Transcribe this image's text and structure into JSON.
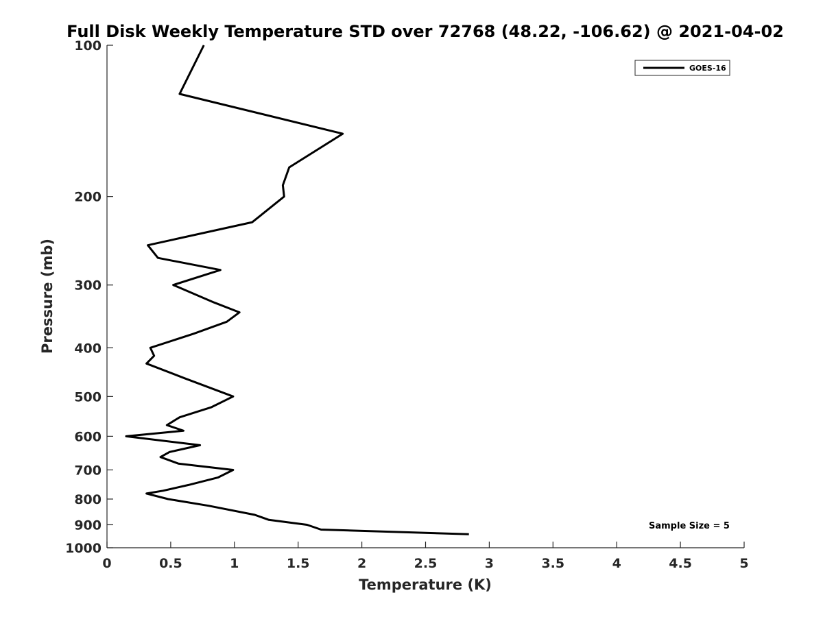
{
  "chart_data": {
    "type": "line",
    "title": "Full Disk Weekly Temperature STD over 72768 (48.22, -106.62) @ 2021-04-02",
    "xlabel": "Temperature (K)",
    "ylabel": "Pressure (mb)",
    "xlim": [
      0,
      5
    ],
    "ylim": [
      100,
      1000
    ],
    "y_scale": "log",
    "y_reversed": true,
    "grid": false,
    "x_ticks": [
      "0",
      "0.5",
      "1",
      "1.5",
      "2",
      "2.5",
      "3",
      "3.5",
      "4",
      "4.5",
      "5"
    ],
    "y_ticks": [
      "100",
      "200",
      "300",
      "400",
      "500",
      "600",
      "700",
      "800",
      "900",
      "1000"
    ],
    "legend": {
      "placement": "top-right",
      "entries": [
        "GOES-16"
      ]
    },
    "annotation": "Sample Size = 5",
    "series": [
      {
        "name": "GOES-16",
        "color": "#000000",
        "points": [
          [
            0.76,
            100
          ],
          [
            0.57,
            125
          ],
          [
            1.85,
            150
          ],
          [
            1.43,
            175
          ],
          [
            1.38,
            190
          ],
          [
            1.39,
            200
          ],
          [
            1.14,
            225
          ],
          [
            0.32,
            250
          ],
          [
            0.4,
            265
          ],
          [
            0.89,
            280
          ],
          [
            0.52,
            300
          ],
          [
            0.84,
            325
          ],
          [
            1.04,
            340
          ],
          [
            0.94,
            355
          ],
          [
            0.68,
            375
          ],
          [
            0.34,
            400
          ],
          [
            0.37,
            415
          ],
          [
            0.31,
            430
          ],
          [
            0.61,
            460
          ],
          [
            0.99,
            500
          ],
          [
            0.82,
            525
          ],
          [
            0.57,
            550
          ],
          [
            0.47,
            570
          ],
          [
            0.6,
            585
          ],
          [
            0.15,
            600
          ],
          [
            0.73,
            625
          ],
          [
            0.49,
            645
          ],
          [
            0.42,
            660
          ],
          [
            0.56,
            680
          ],
          [
            0.99,
            700
          ],
          [
            0.87,
            725
          ],
          [
            0.64,
            750
          ],
          [
            0.44,
            770
          ],
          [
            0.31,
            780
          ],
          [
            0.48,
            800
          ],
          [
            0.8,
            825
          ],
          [
            1.16,
            860
          ],
          [
            1.27,
            880
          ],
          [
            1.57,
            900
          ],
          [
            1.68,
            920
          ],
          [
            2.84,
            940
          ]
        ]
      }
    ]
  }
}
